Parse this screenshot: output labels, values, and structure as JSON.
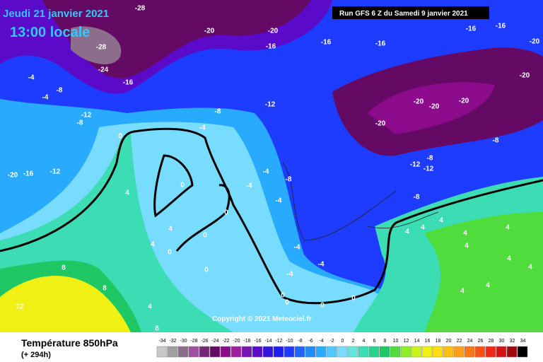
{
  "map": {
    "date": "Jeudi 21 janvier 2021",
    "time": "13:00 locale",
    "run": "Run GFS 6 Z du Samedi 9 janvier 2021",
    "copyright": "Copyright © 2021 Meteociel.fr",
    "contour_labels": [
      "-28",
      "-20",
      "-20",
      "-16",
      "-16",
      "-16",
      "-16",
      "-28",
      "-16",
      "-24",
      "-16",
      "-20",
      "-20",
      "-8",
      "-4",
      "-4",
      "-12",
      "-8",
      "-8",
      "-12",
      "-20",
      "-20",
      "-20",
      "-20",
      "-8",
      "-4",
      "0",
      "-20",
      "-16",
      "-12",
      "-8",
      "-12",
      "-12",
      "-4",
      "-4",
      "-8",
      "0",
      "-4",
      "-8",
      "4",
      "0",
      "4",
      "0",
      "4",
      "0",
      "-4",
      "-4",
      "0",
      "-4",
      "8",
      "8",
      "4",
      "12",
      "0",
      "0",
      "0",
      "8",
      "4",
      "4",
      "4",
      "4",
      "4",
      "4",
      "4",
      "4",
      "4",
      "4",
      "0"
    ]
  },
  "legend": {
    "title": "Température 850hPa",
    "lead": "(+ 294h)",
    "ticks": [
      "-34",
      "-32",
      "-30",
      "-28",
      "-26",
      "-24",
      "-22",
      "-20",
      "-18",
      "-16",
      "-14",
      "-12",
      "-10",
      "-8",
      "-6",
      "-4",
      "-2",
      "0",
      "2",
      "4",
      "6",
      "8",
      "10",
      "12",
      "14",
      "16",
      "18",
      "20",
      "22",
      "24",
      "26",
      "28",
      "30",
      "32",
      "34"
    ],
    "colors": [
      "#c8c8c8",
      "#a0a0a0",
      "#8c6e8c",
      "#a050a0",
      "#782878",
      "#640a64",
      "#8c0a8c",
      "#a01ea0",
      "#7814b4",
      "#5a0ac8",
      "#3214dc",
      "#1e1ef0",
      "#1e3cff",
      "#1e64ff",
      "#1e8cff",
      "#28aaff",
      "#50c8ff",
      "#78dcff",
      "#64e6dc",
      "#3cdcb4",
      "#28d28c",
      "#1ec864",
      "#50dc3c",
      "#8cf028",
      "#c8f51e",
      "#f0f014",
      "#ffdc14",
      "#ffbe14",
      "#ffa014",
      "#ff7814",
      "#ff5014",
      "#f02814",
      "#d21414",
      "#a00a0a",
      "#000000"
    ]
  }
}
